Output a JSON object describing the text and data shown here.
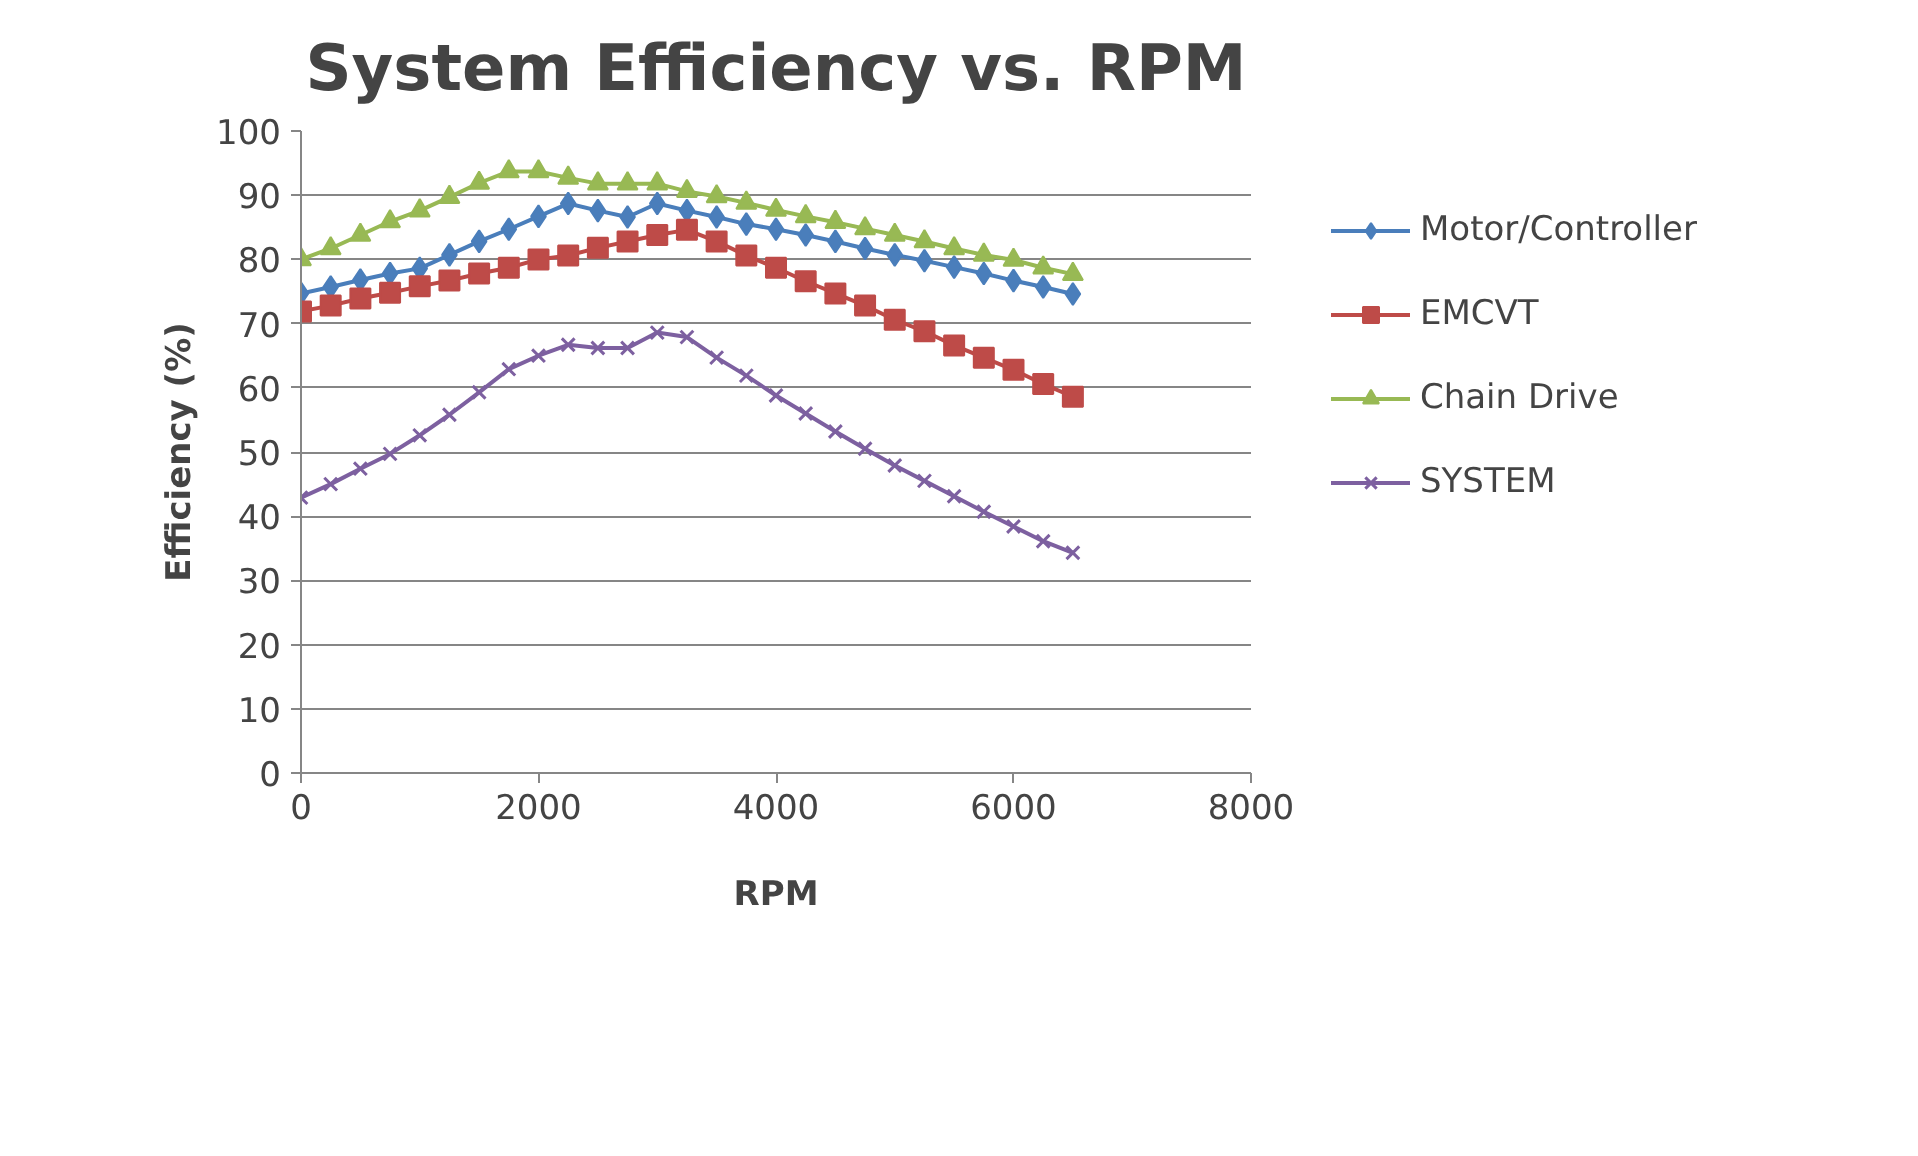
{
  "chart_data": {
    "type": "line",
    "title": "System Efficiency vs. RPM",
    "xlabel": "RPM",
    "ylabel": "Efficiency (%)",
    "x": [
      0,
      250,
      500,
      750,
      1000,
      1250,
      1500,
      1750,
      2000,
      2250,
      2500,
      2750,
      3000,
      3250,
      3500,
      3750,
      4000,
      4250,
      4500,
      4750,
      5000,
      5250,
      5500,
      5750,
      6000,
      6250,
      6500
    ],
    "xlim": [
      0,
      8000
    ],
    "xticks": [
      0,
      2000,
      4000,
      6000,
      8000
    ],
    "ylim": [
      0,
      100
    ],
    "yticks": [
      0,
      10,
      20,
      30,
      40,
      50,
      60,
      70,
      80,
      90,
      100
    ],
    "grid": "y",
    "legend": "right",
    "series": [
      {
        "name": "Motor/Controller",
        "color": "#4a7ebb",
        "marker": "diamond",
        "values": [
          74.7,
          75.7,
          76.8,
          77.8,
          78.6,
          80.7,
          82.8,
          84.7,
          86.7,
          88.7,
          87.6,
          86.6,
          88.7,
          87.6,
          86.6,
          85.5,
          84.7,
          83.8,
          82.8,
          81.7,
          80.7,
          79.8,
          78.8,
          77.8,
          76.7,
          75.7,
          74.6
        ]
      },
      {
        "name": "EMCVT",
        "color": "#be4b48",
        "marker": "square",
        "values": [
          71.9,
          72.8,
          73.9,
          74.8,
          75.8,
          76.7,
          77.8,
          78.7,
          80,
          80.6,
          81.8,
          82.8,
          83.8,
          84.6,
          82.8,
          80.6,
          78.7,
          76.6,
          74.7,
          72.8,
          70.6,
          68.8,
          66.6,
          64.7,
          62.8,
          60.6,
          58.6
        ]
      },
      {
        "name": "Chain Drive",
        "color": "#98b954",
        "marker": "triangle",
        "values": [
          80,
          81.7,
          83.8,
          85.9,
          87.6,
          89.7,
          91.9,
          93.7,
          93.7,
          92.7,
          91.8,
          91.8,
          91.8,
          90.6,
          89.8,
          88.8,
          87.7,
          86.7,
          85.8,
          84.8,
          83.8,
          82.8,
          81.7,
          80.7,
          79.9,
          78.7,
          77.7
        ]
      },
      {
        "name": "SYSTEM",
        "color": "#7d60a0",
        "marker": "x",
        "values": [
          42.9,
          45,
          47.4,
          49.7,
          52.6,
          55.8,
          59.3,
          62.9,
          65,
          66.7,
          66.2,
          66.2,
          68.6,
          67.9,
          64.7,
          61.9,
          58.8,
          56,
          53.2,
          50.5,
          47.9,
          45.5,
          43.1,
          40.7,
          38.4,
          36.1,
          34.3
        ]
      }
    ]
  }
}
